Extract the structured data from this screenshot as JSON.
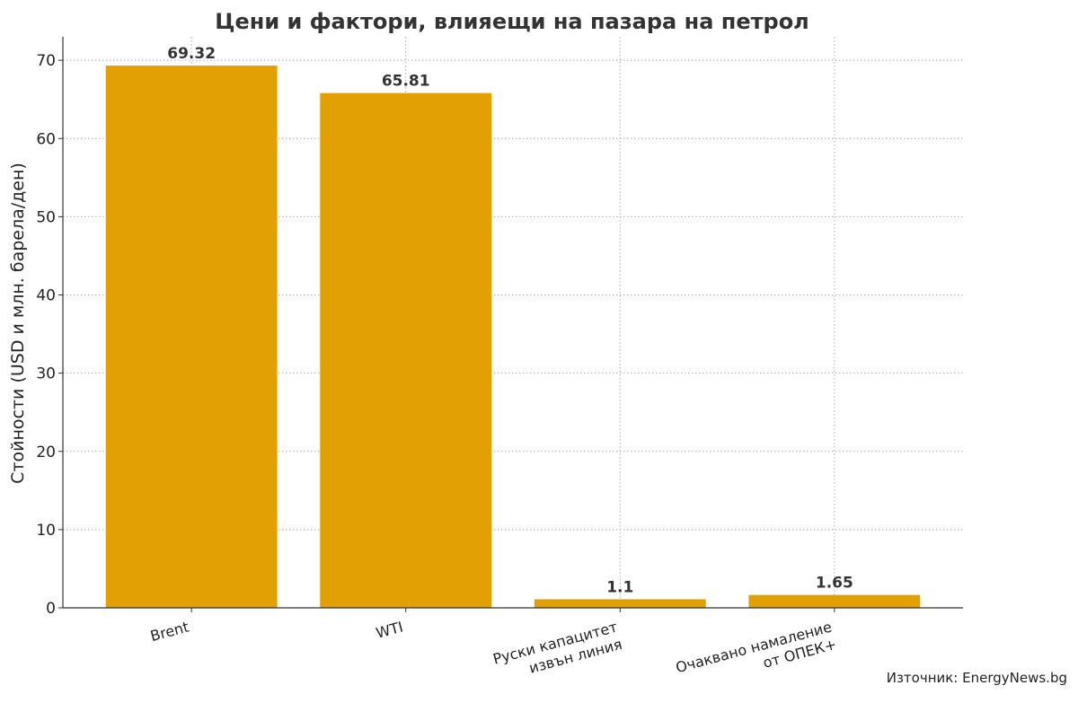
{
  "chart_data": {
    "type": "bar",
    "title": "Цени и фактори, влияещи на пазара на петрол",
    "ylabel": "Стойности (USD и млн. барела/ден)",
    "categories": [
      [
        "Brent"
      ],
      [
        "WTI"
      ],
      [
        "Руски капацитет",
        "извън линия"
      ],
      [
        "Очаквано намаление",
        "от ОПЕК+"
      ]
    ],
    "values": [
      69.32,
      65.81,
      1.1,
      1.65
    ],
    "value_labels": [
      "69.32",
      "65.81",
      "1.1",
      "1.65"
    ],
    "ylim": [
      0,
      73
    ],
    "yticks": [
      0,
      10,
      20,
      30,
      40,
      50,
      60,
      70
    ],
    "grid": true,
    "bar_color": "#E3A005"
  },
  "source_note": "Източник: EnergyNews.bg"
}
